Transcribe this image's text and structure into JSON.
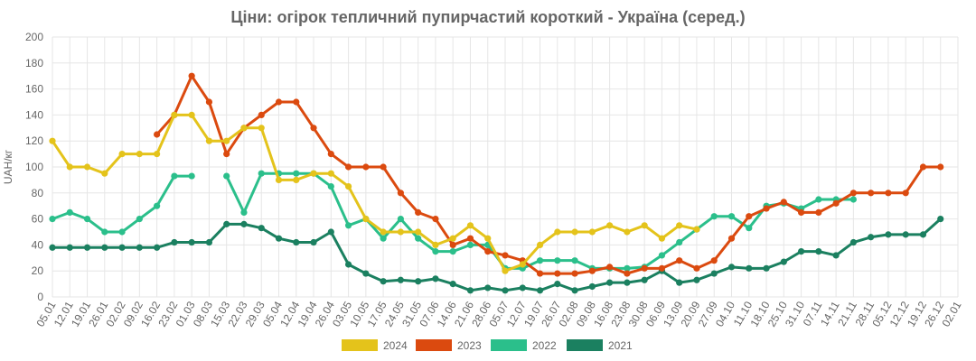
{
  "chart_data": {
    "type": "line",
    "title": "Ціни: огірок тепличний пупирчастий короткий - Україна (серед.)",
    "ylabel": "UAH/кг",
    "xlabel": "",
    "ylim": [
      0,
      200
    ],
    "yticks": [
      0,
      20,
      40,
      60,
      80,
      100,
      120,
      140,
      160,
      180,
      200
    ],
    "grid": true,
    "legend_position": "bottom",
    "categories": [
      "05.01",
      "12.01",
      "19.01",
      "26.01",
      "02.02",
      "09.02",
      "16.02",
      "23.02",
      "01.03",
      "08.03",
      "15.03",
      "22.03",
      "29.03",
      "05.04",
      "12.04",
      "19.04",
      "26.04",
      "03.05",
      "10.05",
      "17.05",
      "24.05",
      "31.05",
      "07.06",
      "14.06",
      "21.06",
      "28.06",
      "05.07",
      "12.07",
      "19.07",
      "26.07",
      "02.08",
      "09.08",
      "16.08",
      "23.08",
      "30.08",
      "06.09",
      "13.09",
      "20.09",
      "27.09",
      "04.10",
      "11.10",
      "18.10",
      "25.10",
      "31.10",
      "07.11",
      "14.11",
      "21.11",
      "28.11",
      "05.12",
      "12.12",
      "19.12",
      "26.12",
      "02.01"
    ],
    "series": [
      {
        "name": "2024",
        "color": "#e4c31b",
        "values": [
          120,
          100,
          100,
          95,
          110,
          110,
          110,
          140,
          140,
          120,
          120,
          130,
          130,
          90,
          90,
          95,
          95,
          85,
          60,
          50,
          50,
          50,
          40,
          45,
          55,
          45,
          20,
          25,
          40,
          50,
          50,
          50,
          55,
          50,
          55,
          45,
          55,
          52,
          null,
          null,
          null,
          null,
          null,
          null,
          null,
          null,
          null,
          null,
          null,
          null,
          null,
          null,
          null
        ]
      },
      {
        "name": "2023",
        "color": "#db4a0f",
        "values": [
          null,
          null,
          null,
          null,
          null,
          null,
          125,
          140,
          170,
          150,
          110,
          130,
          140,
          150,
          150,
          130,
          110,
          100,
          100,
          100,
          80,
          65,
          60,
          40,
          45,
          35,
          32,
          28,
          18,
          18,
          18,
          20,
          23,
          18,
          22,
          22,
          28,
          22,
          28,
          45,
          62,
          68,
          73,
          65,
          65,
          72,
          80,
          80,
          80,
          80,
          100,
          100,
          null
        ]
      },
      {
        "name": "2022",
        "color": "#2bbf8b",
        "values": [
          60,
          65,
          60,
          50,
          50,
          60,
          70,
          93,
          93,
          null,
          93,
          65,
          95,
          95,
          95,
          95,
          85,
          55,
          60,
          45,
          60,
          45,
          35,
          35,
          40,
          40,
          22,
          22,
          28,
          28,
          28,
          22,
          22,
          22,
          23,
          32,
          42,
          52,
          62,
          62,
          53,
          70,
          72,
          68,
          75,
          75,
          75,
          null,
          null,
          null,
          null,
          null,
          null
        ]
      },
      {
        "name": "2021",
        "color": "#1b8060",
        "values": [
          38,
          38,
          38,
          38,
          38,
          38,
          38,
          42,
          42,
          42,
          56,
          56,
          53,
          45,
          42,
          42,
          50,
          25,
          18,
          12,
          13,
          12,
          14,
          10,
          5,
          7,
          5,
          7,
          5,
          10,
          5,
          8,
          11,
          11,
          13,
          20,
          11,
          13,
          18,
          23,
          22,
          22,
          27,
          35,
          35,
          32,
          42,
          46,
          48,
          48,
          48,
          60,
          null
        ]
      }
    ]
  }
}
